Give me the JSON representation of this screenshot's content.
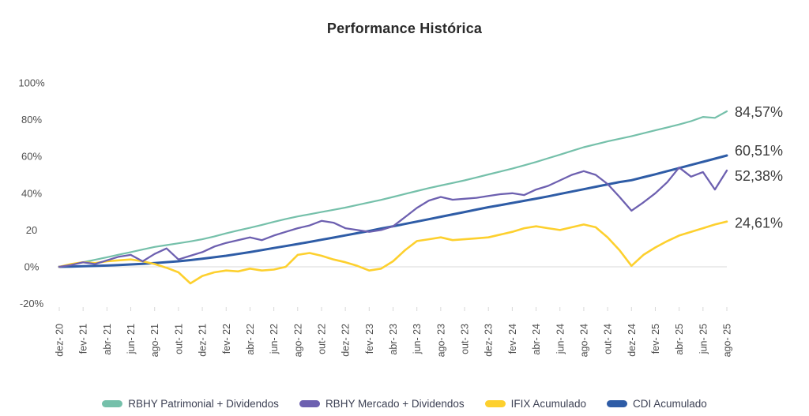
{
  "page": {
    "background": "#ffffff"
  },
  "chart_data": {
    "type": "line",
    "title": "Performance Histórica",
    "x_tick_labels": [
      "dez- 20",
      "fev- 21",
      "abr- 21",
      "jun- 21",
      "ago- 21",
      "out- 21",
      "dez- 21",
      "fev- 22",
      "abr- 22",
      "jun- 22",
      "ago- 22",
      "out- 22",
      "dez- 22",
      "fev- 23",
      "abr- 23",
      "jun- 23",
      "ago- 23",
      "out- 23",
      "dez- 23",
      "fev- 24",
      "abr- 24",
      "jun- 24",
      "ago- 24",
      "out- 24",
      "dez- 24",
      "fev- 25",
      "abr- 25",
      "jun- 25",
      "ago- 25"
    ],
    "x_tick_every_months": 2,
    "months_span": 56,
    "y_axis": {
      "tick_labels": [
        "100%",
        "80%",
        "60%",
        "40%",
        "20",
        "0%",
        "-20%"
      ],
      "tick_values": [
        100,
        80,
        60,
        40,
        20,
        0,
        -20
      ],
      "ylim": [
        -20,
        100
      ]
    },
    "grid": "horizontal-zero-line-only",
    "zero_line_color": "#d9d9d9",
    "tick_mark_color": "#d8d8d8",
    "legend_position": "bottom",
    "series": [
      {
        "name": "RBHY Patrimonial + Dividendos",
        "color": "#75c0aa",
        "end_label": "84,57%",
        "values": [
          0,
          1.2,
          2.5,
          3.8,
          5.2,
          6.6,
          8,
          9.4,
          10.8,
          11.8,
          12.8,
          13.8,
          15,
          16.5,
          18.2,
          19.8,
          21.2,
          22.8,
          24.4,
          26,
          27.4,
          28.6,
          29.8,
          31,
          32.2,
          33.6,
          35,
          36.4,
          38,
          39.6,
          41.2,
          42.8,
          44.2,
          45.6,
          47,
          48.6,
          50.2,
          51.8,
          53.4,
          55.2,
          57,
          59,
          61,
          63,
          65,
          66.6,
          68.2,
          69.6,
          71,
          72.6,
          74.2,
          75.8,
          77.4,
          79.2,
          81.5,
          81,
          84.57
        ]
      },
      {
        "name": "RBHY Mercado + Dividendos",
        "color": "#6d60b0",
        "end_label": "52,38%",
        "values": [
          0,
          1,
          2.5,
          1.5,
          3.5,
          5.5,
          6.5,
          3,
          7,
          10,
          4,
          6,
          8,
          11,
          13,
          14.5,
          16,
          14.5,
          17,
          19,
          21,
          22.5,
          25,
          24,
          21,
          20,
          19,
          20,
          22,
          27,
          32,
          36,
          38,
          36.5,
          37,
          37.5,
          38.5,
          39.5,
          40,
          39,
          42,
          44,
          47,
          50,
          52,
          50,
          45,
          38,
          30.5,
          35,
          40,
          46,
          54,
          49,
          51.5,
          42,
          52.38
        ]
      },
      {
        "name": "IFIX Acumulado",
        "color": "#fdd02e",
        "end_label": "24,61%",
        "values": [
          0,
          1.5,
          2.5,
          2,
          3,
          3.5,
          4,
          3,
          1.5,
          -0.5,
          -3,
          -9,
          -5,
          -3,
          -2,
          -2.5,
          -1,
          -2,
          -1.5,
          0,
          6.5,
          7.5,
          6,
          4,
          2.5,
          0.5,
          -2,
          -1,
          3,
          9,
          14,
          15,
          16,
          14.5,
          15,
          15.5,
          16,
          17.5,
          19,
          21,
          22,
          21,
          20,
          21.5,
          23,
          21.5,
          16,
          9,
          0.5,
          6.5,
          10.5,
          14,
          17,
          19,
          21,
          23,
          24.61
        ]
      },
      {
        "name": "CDI Acumulado",
        "color": "#2e5ca6",
        "end_label": "60,51%",
        "values": [
          0,
          0.15,
          0.28,
          0.48,
          0.69,
          0.96,
          1.28,
          1.64,
          2.08,
          2.52,
          3.02,
          3.63,
          4.42,
          5.2,
          6,
          7,
          8,
          9.1,
          10.2,
          11.3,
          12.4,
          13.5,
          14.7,
          15.9,
          17.1,
          18.3,
          19.5,
          20.8,
          22,
          23.3,
          24.6,
          25.9,
          27.2,
          28.5,
          29.8,
          31.1,
          32.4,
          33.5,
          34.7,
          35.9,
          37.1,
          38.3,
          39.6,
          40.9,
          42.2,
          43.5,
          44.8,
          46.1,
          47.1,
          48.7,
          50.3,
          52,
          53.7,
          55.4,
          57.1,
          58.8,
          60.51
        ]
      }
    ]
  }
}
